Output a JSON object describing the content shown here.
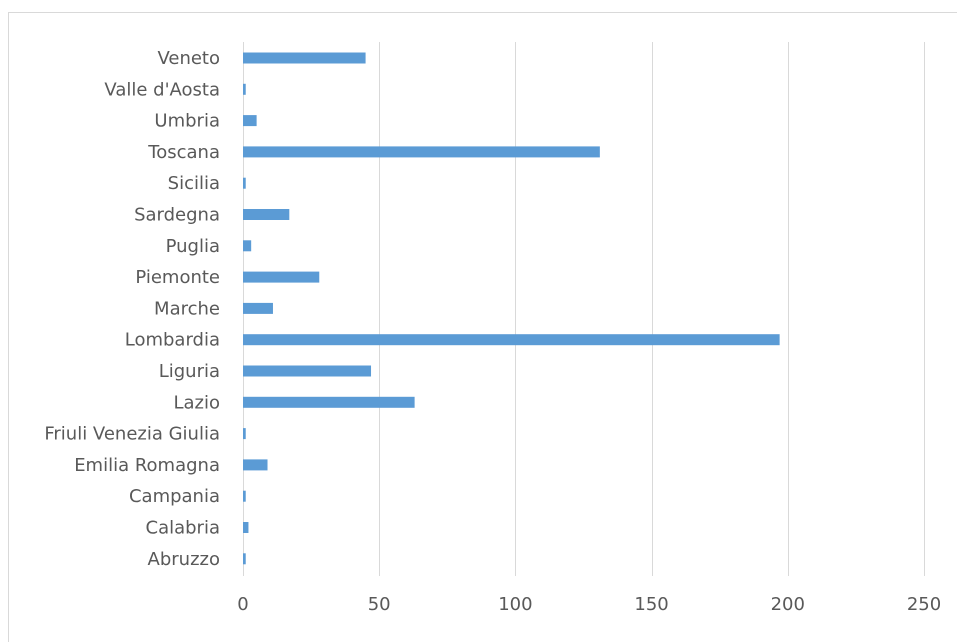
{
  "chart_data": {
    "type": "bar",
    "orientation": "horizontal",
    "title": "",
    "xlabel": "",
    "ylabel": "",
    "xlim": [
      0,
      250
    ],
    "x_ticks": [
      0,
      50,
      100,
      150,
      200,
      250
    ],
    "grid": "vertical",
    "legend": "none",
    "bar_color": "#5b9bd5",
    "gridline_color": "#d9d9d9",
    "categories": [
      "Veneto",
      "Valle d'Aosta",
      "Umbria",
      "Toscana",
      "Sicilia",
      "Sardegna",
      "Puglia",
      "Piemonte",
      "Marche",
      "Lombardia",
      "Liguria",
      "Lazio",
      "Friuli Venezia Giulia",
      "Emilia Romagna ",
      "Campania",
      "Calabria ",
      "Abruzzo"
    ],
    "values": [
      45,
      1,
      5,
      131,
      1,
      17,
      3,
      28,
      11,
      197,
      47,
      63,
      1,
      9,
      1,
      2,
      1
    ]
  }
}
